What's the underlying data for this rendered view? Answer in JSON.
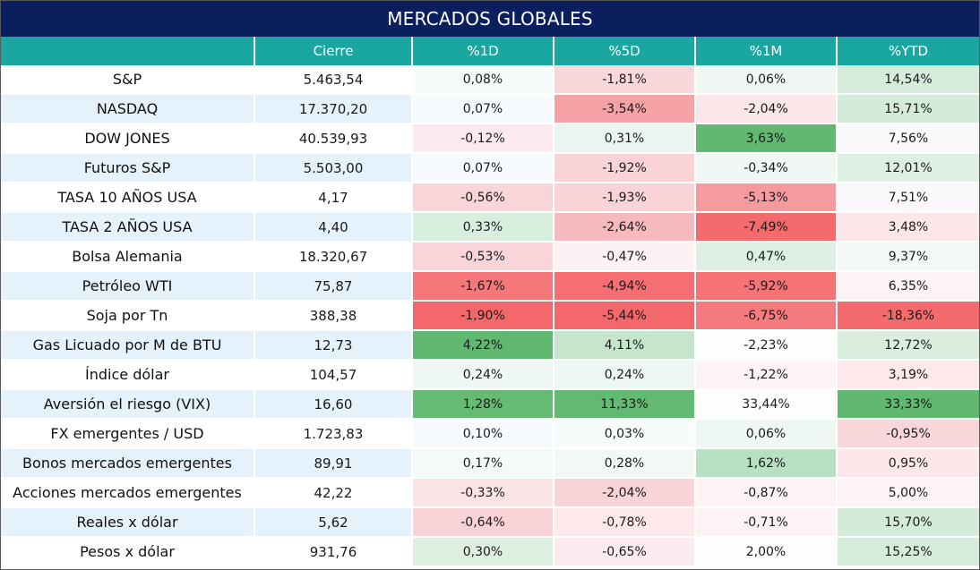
{
  "title": "MERCADOS GLOBALES",
  "headers": [
    "",
    "Cierre",
    "%1D",
    "%5D",
    "%1M",
    "%YTD"
  ],
  "rows": [
    {
      "name": "S&P",
      "close": "5.463,54",
      "d1": "0,08%",
      "d5": "-1,81%",
      "m1": "0,06%",
      "ytd": "14,54%"
    },
    {
      "name": "NASDAQ",
      "close": "17.370,20",
      "d1": "0,07%",
      "d5": "-3,54%",
      "m1": "-2,04%",
      "ytd": "15,71%"
    },
    {
      "name": "DOW JONES",
      "close": "40.539,93",
      "d1": "-0,12%",
      "d5": "0,31%",
      "m1": "3,63%",
      "ytd": "7,56%"
    },
    {
      "name": "Futuros S&P",
      "close": "5.503,00",
      "d1": "0,07%",
      "d5": "-1,92%",
      "m1": "-0,34%",
      "ytd": "12,01%"
    },
    {
      "name": "TASA 10 AÑOS USA",
      "close": "4,17",
      "d1": "-0,56%",
      "d5": "-1,93%",
      "m1": "-5,13%",
      "ytd": "7,51%"
    },
    {
      "name": "TASA 2 AÑOS USA",
      "close": "4,40",
      "d1": "0,33%",
      "d5": "-2,64%",
      "m1": "-7,49%",
      "ytd": "3,48%"
    },
    {
      "name": "Bolsa Alemania",
      "close": "18.320,67",
      "d1": "-0,53%",
      "d5": "-0,47%",
      "m1": "0,47%",
      "ytd": "9,37%"
    },
    {
      "name": "Petróleo WTI",
      "close": "75,87",
      "d1": "-1,67%",
      "d5": "-4,94%",
      "m1": "-5,92%",
      "ytd": "6,35%"
    },
    {
      "name": "Soja por Tn",
      "close": "388,38",
      "d1": "-1,90%",
      "d5": "-5,44%",
      "m1": "-6,75%",
      "ytd": "-18,36%"
    },
    {
      "name": "Gas Licuado por M de BTU",
      "close": "12,73",
      "d1": "4,22%",
      "d5": "4,11%",
      "m1": "-2,23%",
      "ytd": "12,72%"
    },
    {
      "name": "Índice dólar",
      "close": "104,57",
      "d1": "0,24%",
      "d5": "0,24%",
      "m1": "-1,22%",
      "ytd": "3,19%"
    },
    {
      "name": "Aversión el riesgo (VIX)",
      "close": "16,60",
      "d1": "1,28%",
      "d5": "11,33%",
      "m1": "33,44%",
      "ytd": "33,33%"
    },
    {
      "name": "FX emergentes / USD",
      "close": "1.723,83",
      "d1": "0,10%",
      "d5": "0,03%",
      "m1": "0,06%",
      "ytd": "-0,95%"
    },
    {
      "name": "Bonos mercados emergentes",
      "close": "89,91",
      "d1": "0,17%",
      "d5": "0,28%",
      "m1": "1,62%",
      "ytd": "0,95%"
    },
    {
      "name": "Acciones mercados emergentes",
      "close": "42,22",
      "d1": "-0,33%",
      "d5": "-2,04%",
      "m1": "-0,87%",
      "ytd": "5,00%"
    },
    {
      "name": "Reales x dólar",
      "close": "5,62",
      "d1": "-0,64%",
      "d5": "-0,78%",
      "m1": "-0,71%",
      "ytd": "15,70%"
    },
    {
      "name": "Pesos x dólar",
      "close": "931,76",
      "d1": "0,30%",
      "d5": "-0,65%",
      "m1": "2,00%",
      "ytd": "15,25%"
    }
  ],
  "cell_colors": {
    "d1": [
      "#f7fbfb",
      "#f8fbfd",
      "#fceaee",
      "#f8fbfd",
      "#f9d4d8",
      "#d8efe0",
      "#f9d5d9",
      "#f5777a",
      "#f4676a",
      "#61b870",
      "#eef7f3",
      "#66ba72",
      "#f6fafc",
      "#f4faf9",
      "#fbe4e8",
      "#f8d2d6",
      "#deeee1"
    ],
    "d5": [
      "#f9d7db",
      "#f4a2a6",
      "#eaf5ef",
      "#f9d3d7",
      "#f9d3d7",
      "#f6b9bd",
      "#fcf1f3",
      "#f56f72",
      "#f4676a",
      "#c5e6cd",
      "#eef7f1",
      "#63b971",
      "#f8fbfb",
      "#f2f9f5",
      "#f8d3d7",
      "#fde9ec",
      "#fcebee"
    ],
    "m1": [
      "#f1f8f4",
      "#fbe6e9",
      "#62b871",
      "#f0f7f4",
      "#f59a9e",
      "#f46a6d",
      "#dbefe2",
      "#f57275",
      "#f57a7d",
      "#fdfdfd",
      "#fef3f5",
      "#fdfdfd",
      "#eef7f2",
      "#b8e0c3",
      "#fdf2f4",
      "#fdf3f4",
      "#fbfdfe"
    ],
    "ytd": [
      "#d6eddc",
      "#d3ecda",
      "#fbf9fb",
      "#def0e3",
      "#fbf9fb",
      "#fde7ea",
      "#f4f9f7",
      "#fdf3f4",
      "#f56a6d",
      "#d9eedf",
      "#fde8eb",
      "#61b870",
      "#f9d6da",
      "#fde7ea",
      "#fdf2f4",
      "#d3ecda",
      "#d6eddc"
    ]
  }
}
